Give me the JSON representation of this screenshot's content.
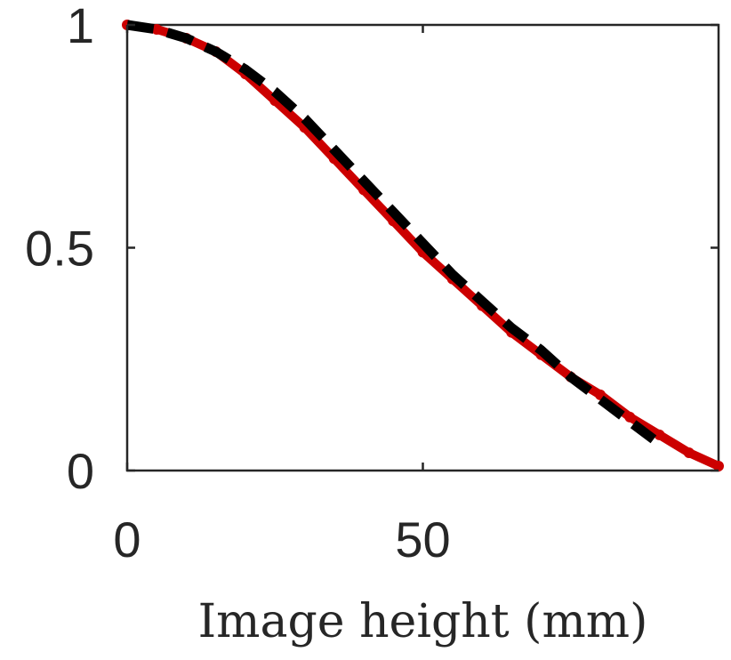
{
  "chart_data": {
    "type": "line",
    "title": "",
    "xlabel": "Image height (mm)",
    "ylabel": "",
    "xlim": [
      0,
      100
    ],
    "ylim": [
      0,
      1
    ],
    "x_ticks": [
      0,
      50
    ],
    "x_tick_labels": [
      "0",
      "50"
    ],
    "y_ticks": [
      0,
      0.5,
      1
    ],
    "y_tick_labels": [
      "0",
      "0.5",
      "1"
    ],
    "grid": false,
    "legend": "none",
    "series": [
      {
        "color": "#cc0000",
        "style": "solid-thick-markers",
        "x": [
          0,
          5,
          10,
          15,
          20,
          25,
          30,
          35,
          40,
          45,
          50,
          55,
          60,
          65,
          70,
          75,
          80,
          85,
          90,
          95,
          100
        ],
        "y": [
          1.0,
          0.99,
          0.97,
          0.94,
          0.89,
          0.83,
          0.77,
          0.7,
          0.63,
          0.56,
          0.49,
          0.43,
          0.37,
          0.31,
          0.26,
          0.21,
          0.17,
          0.12,
          0.08,
          0.04,
          0.01
        ]
      },
      {
        "color": "#000000",
        "style": "dashed-thick",
        "x": [
          0,
          5,
          10,
          15,
          20,
          25,
          30,
          35,
          40,
          45,
          50,
          55,
          60,
          65,
          70,
          75,
          80,
          85,
          89
        ],
        "y": [
          1.0,
          0.99,
          0.97,
          0.94,
          0.9,
          0.85,
          0.79,
          0.72,
          0.65,
          0.58,
          0.51,
          0.44,
          0.38,
          0.32,
          0.27,
          0.21,
          0.16,
          0.11,
          0.07
        ]
      }
    ]
  }
}
